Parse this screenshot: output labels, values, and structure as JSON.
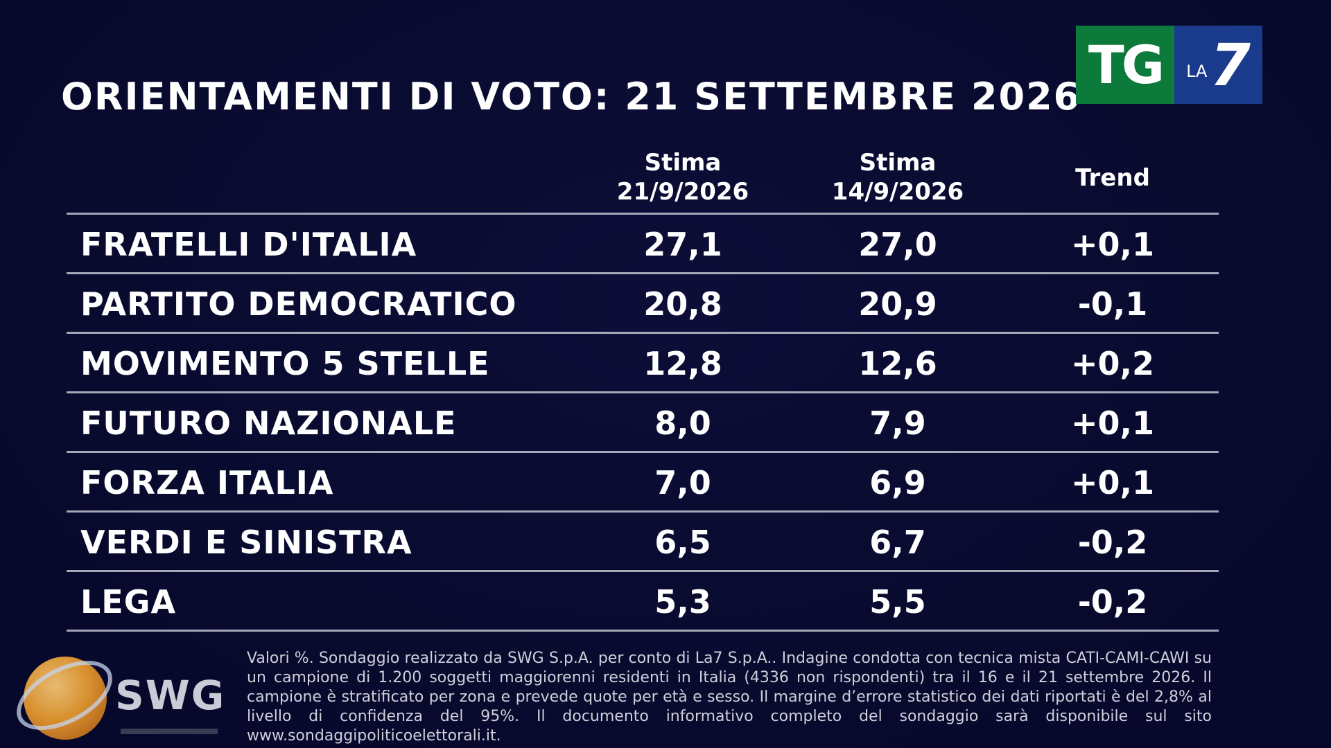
{
  "title": "ORIENTAMENTI DI VOTO: 21 SETTEMBRE 2026",
  "logo": {
    "tg": "TG",
    "la": "LA",
    "seven": "7",
    "colors": {
      "tg": "#0c7a3a",
      "la7": "#1a3a8c"
    }
  },
  "chart_data": {
    "type": "table",
    "columns": [
      {
        "line1": "Stima",
        "line2": "21/9/2026"
      },
      {
        "line1": "Stima",
        "line2": "14/9/2026"
      },
      {
        "line1": "Trend",
        "line2": ""
      }
    ],
    "rows": [
      {
        "party": "FRATELLI D'ITALIA",
        "current": "27,1",
        "previous": "27,0",
        "trend": "+0,1"
      },
      {
        "party": "PARTITO DEMOCRATICO",
        "current": "20,8",
        "previous": "20,9",
        "trend": "-0,1"
      },
      {
        "party": "MOVIMENTO 5 STELLE",
        "current": "12,8",
        "previous": "12,6",
        "trend": "+0,2"
      },
      {
        "party": "FUTURO NAZIONALE",
        "current": "8,0",
        "previous": "7,9",
        "trend": "+0,1"
      },
      {
        "party": "FORZA ITALIA",
        "current": "7,0",
        "previous": "6,9",
        "trend": "+0,1"
      },
      {
        "party": "VERDI E SINISTRA",
        "current": "6,5",
        "previous": "6,7",
        "trend": "-0,2"
      },
      {
        "party": "LEGA",
        "current": "5,3",
        "previous": "5,5",
        "trend": "-0,2"
      }
    ]
  },
  "footer": {
    "note": "Valori %. Sondaggio realizzato da SWG S.p.A. per conto di La7 S.p.A.. Indagine condotta con tecnica mista CATI-CAMI-CAWI su un campione di 1.200 soggetti maggiorenni residenti in Italia (4336 non rispondenti) tra il 16 e il 21 settembre 2026. Il campione è stratificato per zona e prevede quote per età e sesso. Il margine d’errore statistico dei dati riportati è del 2,8% al livello di confidenza del 95%. Il documento informativo completo del sondaggio sarà disponibile sul sito www.sondaggipoliticoelettorali.it.",
    "swg_label": "SWG"
  }
}
